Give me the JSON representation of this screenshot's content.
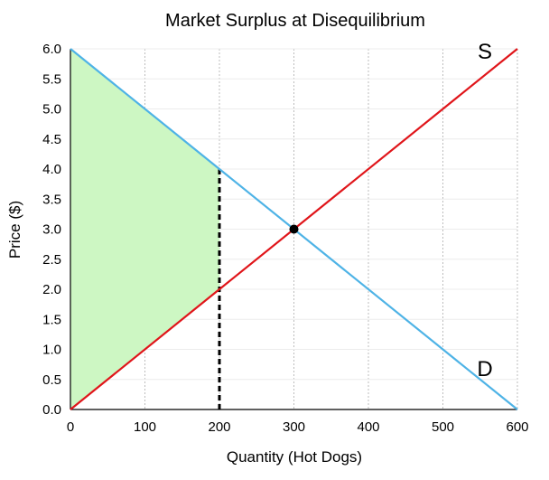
{
  "chart_data": {
    "type": "line",
    "title": "Market Surplus at Disequilibrium",
    "xlabel": "Quantity (Hot Dogs)",
    "ylabel": "Price ($)",
    "xlim": [
      0,
      600
    ],
    "ylim": [
      0,
      6
    ],
    "x_ticks": [
      "0",
      "100",
      "200",
      "300",
      "400",
      "500",
      "600"
    ],
    "y_ticks": [
      "0.0",
      "0.5",
      "1.0",
      "1.5",
      "2.0",
      "2.5",
      "3.0",
      "3.5",
      "4.0",
      "4.5",
      "5.0",
      "5.5",
      "6.0"
    ],
    "grid": {
      "vertical": true,
      "horizontal": true
    },
    "series": [
      {
        "name": "S",
        "color": "#e0151a",
        "points": [
          [
            0,
            0
          ],
          [
            600,
            6
          ]
        ]
      },
      {
        "name": "D",
        "color": "#4eb3e6",
        "points": [
          [
            0,
            6
          ],
          [
            600,
            0
          ]
        ]
      }
    ],
    "equilibrium": {
      "x": 300,
      "y": 3,
      "color": "#000000"
    },
    "quantity_line": {
      "x": 200,
      "y_from": 0,
      "y_to": 4,
      "style": "dashed",
      "color": "#000000"
    },
    "surplus_area": {
      "color": "#cdf7c3",
      "polygon": [
        [
          0,
          0
        ],
        [
          0,
          6
        ],
        [
          200,
          4
        ],
        [
          200,
          2
        ]
      ]
    }
  }
}
